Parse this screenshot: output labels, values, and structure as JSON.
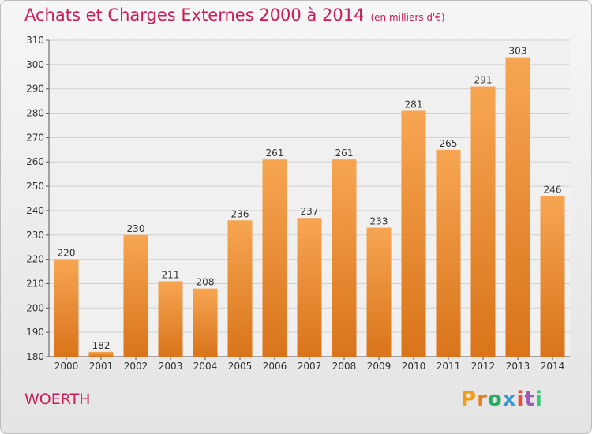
{
  "header": {
    "title": "Achats et Charges Externes 2000 à 2014",
    "subtitle": "(en milliers d'€)"
  },
  "footer": {
    "location": "WOERTH",
    "logo_text": "Proxiti"
  },
  "colors": {
    "title": "#cc1a58",
    "bar_top": "#f7a552",
    "bar_bottom": "#d9741a",
    "logo_letters": [
      "#f39c12",
      "#e67e22",
      "#27ae60",
      "#3498db",
      "#e74c3c",
      "#9b59b6",
      "#2ecc71"
    ]
  },
  "chart_data": {
    "type": "bar",
    "title": "Achats et Charges Externes 2000 à 2014",
    "categories": [
      "2000",
      "2001",
      "2002",
      "2003",
      "2004",
      "2005",
      "2006",
      "2007",
      "2008",
      "2009",
      "2010",
      "2011",
      "2012",
      "2013",
      "2014"
    ],
    "values": [
      220,
      182,
      230,
      211,
      208,
      236,
      261,
      237,
      261,
      233,
      281,
      265,
      291,
      303,
      246
    ],
    "ylim": [
      180,
      310
    ],
    "yticks": [
      180,
      190,
      200,
      210,
      220,
      230,
      240,
      250,
      260,
      270,
      280,
      290,
      300,
      310
    ],
    "grid": true
  }
}
